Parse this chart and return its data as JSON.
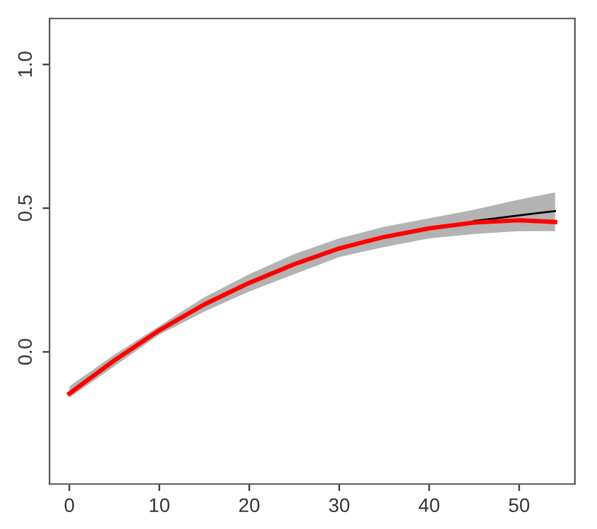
{
  "chart_data": {
    "type": "line",
    "x": [
      0,
      5,
      10,
      15,
      20,
      25,
      30,
      35,
      40,
      45,
      50,
      54
    ],
    "series": [
      {
        "color": "#000000",
        "values": [
          null,
          null,
          null,
          null,
          null,
          null,
          null,
          null,
          null,
          0.455,
          0.475,
          0.49
        ],
        "lower": [
          -0.16,
          -0.05,
          0.06,
          0.14,
          0.21,
          0.27,
          0.33,
          0.365,
          0.395,
          0.41,
          0.42,
          0.42
        ],
        "upper": [
          -0.12,
          -0.01,
          0.09,
          0.19,
          0.27,
          0.34,
          0.395,
          0.435,
          0.465,
          0.495,
          0.53,
          0.555
        ]
      },
      {
        "color": "#ff0000",
        "values": [
          -0.145,
          -0.03,
          0.075,
          0.165,
          0.24,
          0.305,
          0.36,
          0.4,
          0.43,
          0.45,
          0.458,
          0.452
        ]
      }
    ],
    "xlim": [
      -2.2,
      56.2
    ],
    "ylim": [
      -0.46,
      1.16
    ],
    "xticks": [
      0,
      10,
      20,
      30,
      40,
      50
    ],
    "yticks": [
      {
        "value": 0,
        "label": "0.0"
      },
      {
        "value": 0.5,
        "label": "0.5"
      },
      {
        "value": 1,
        "label": "1.0"
      }
    ],
    "grid": false
  }
}
